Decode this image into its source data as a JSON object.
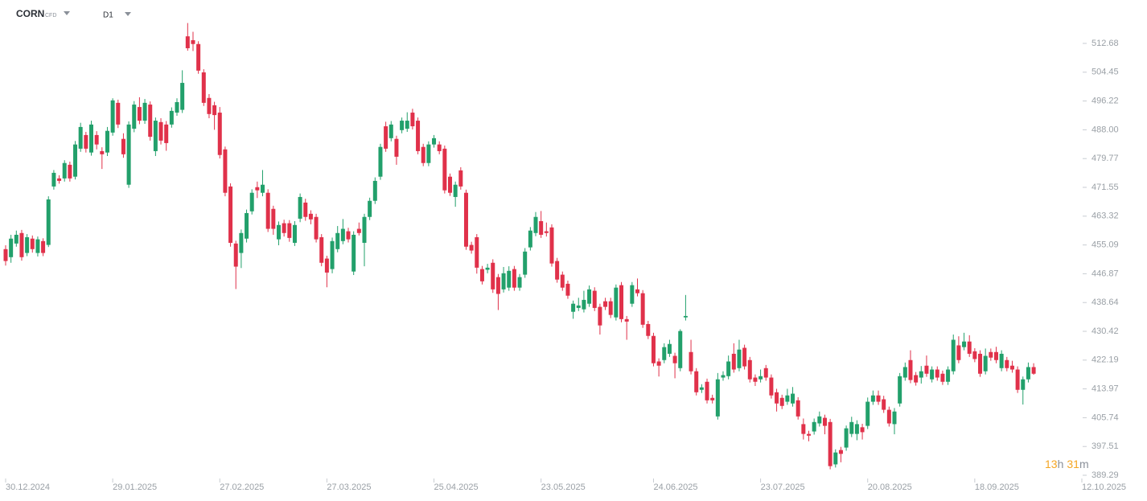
{
  "chart_data": {
    "type": "candlestick",
    "symbol": "CORN",
    "instrument": "CFD",
    "timeframe": "D1",
    "countdown": {
      "hours": 13,
      "hours_unit": "h",
      "minutes": 31,
      "minutes_unit": "m"
    },
    "up_color": "#22a06b",
    "down_color": "#e0314a",
    "xlim": [
      -1.05,
      201
    ],
    "xticks": [
      {
        "value": 0,
        "label": "30.12.2024"
      },
      {
        "value": 20,
        "label": "29.01.2025"
      },
      {
        "value": 40,
        "label": "27.02.2025"
      },
      {
        "value": 60,
        "label": "27.03.2025"
      },
      {
        "value": 80,
        "label": "25.04.2025"
      },
      {
        "value": 100,
        "label": "23.05.2025"
      },
      {
        "value": 121,
        "label": "24.06.2025"
      },
      {
        "value": 141,
        "label": "23.07.2025"
      },
      {
        "value": 161,
        "label": "20.08.2025"
      },
      {
        "value": 181,
        "label": "18.09.2025"
      },
      {
        "value": 201,
        "label": "12.10.2025"
      }
    ],
    "ylim": [
      388.37,
      525.08
    ],
    "yticks": [
      512.68,
      504.45,
      496.22,
      {
        "value": 488,
        "label": "488.00"
      },
      479.77,
      471.55,
      463.32,
      455.09,
      446.87,
      438.64,
      430.42,
      422.19,
      413.97,
      405.74,
      397.51,
      389.29
    ],
    "ohlc": [
      [
        453.9,
        455.0,
        449.2,
        450.5
      ],
      [
        451.6,
        458.0,
        450.0,
        456.9
      ],
      [
        455.5,
        459.2,
        454.6,
        458.0
      ],
      [
        458.5,
        459.4,
        450.6,
        451.6
      ],
      [
        452.8,
        458.2,
        451.9,
        457.3
      ],
      [
        456.9,
        457.8,
        452.9,
        453.9
      ],
      [
        452.8,
        457.5,
        451.8,
        456.7
      ],
      [
        456.2,
        457.0,
        451.9,
        452.8
      ],
      [
        455.1,
        469.0,
        454.5,
        468.1
      ],
      [
        471.8,
        476.5,
        470.9,
        475.7
      ],
      [
        474.1,
        475.0,
        472.6,
        473.4
      ],
      [
        474.1,
        479.3,
        473.2,
        478.5
      ],
      [
        478.0,
        478.9,
        473.2,
        474.1
      ],
      [
        474.6,
        484.8,
        473.8,
        483.8
      ],
      [
        482.6,
        490.0,
        481.7,
        488.8
      ],
      [
        486.5,
        487.4,
        481.5,
        482.6
      ],
      [
        481.5,
        490.6,
        480.6,
        489.5
      ],
      [
        486.5,
        487.6,
        482.4,
        483.8
      ],
      [
        481.9,
        483.0,
        476.8,
        481.0
      ],
      [
        481.5,
        488.8,
        480.5,
        487.7
      ],
      [
        487.2,
        497.0,
        486.3,
        496.4
      ],
      [
        495.7,
        496.6,
        488.5,
        489.5
      ],
      [
        485.4,
        487.0,
        480.0,
        481.0
      ],
      [
        472.3,
        490.4,
        471.4,
        489.5
      ],
      [
        488.3,
        496.2,
        487.3,
        495.2
      ],
      [
        494.5,
        497.3,
        489.6,
        490.6
      ],
      [
        490.6,
        496.8,
        489.7,
        495.7
      ],
      [
        495.2,
        496.1,
        484.9,
        486.0
      ],
      [
        481.9,
        491.5,
        480.5,
        490.6
      ],
      [
        490.2,
        491.3,
        483.8,
        484.9
      ],
      [
        489.5,
        490.5,
        482.0,
        484.2
      ],
      [
        489.5,
        494.4,
        488.6,
        493.4
      ],
      [
        492.9,
        497.0,
        492.0,
        495.9
      ],
      [
        493.7,
        505.0,
        492.8,
        501.4
      ],
      [
        514.7,
        518.5,
        510.6,
        511.3
      ],
      [
        513.6,
        516.0,
        510.5,
        512.5
      ],
      [
        512.5,
        513.3,
        504.0,
        504.9
      ],
      [
        504.4,
        505.3,
        494.8,
        495.7
      ],
      [
        497.1,
        498.2,
        491.3,
        492.5
      ],
      [
        495.0,
        496.0,
        488.0,
        492.2
      ],
      [
        492.9,
        494.5,
        479.8,
        480.8
      ],
      [
        482.4,
        483.2,
        469.0,
        470.0
      ],
      [
        471.8,
        472.7,
        454.6,
        455.7
      ],
      [
        455.5,
        456.3,
        442.5,
        448.9
      ],
      [
        452.8,
        459.5,
        448.5,
        458.5
      ],
      [
        456.9,
        465.2,
        455.8,
        464.2
      ],
      [
        464.7,
        471.0,
        463.8,
        470.0
      ],
      [
        471.6,
        473.2,
        468.5,
        470.7
      ],
      [
        470.0,
        476.5,
        469.0,
        472.3
      ],
      [
        470.0,
        471.0,
        458.8,
        459.7
      ],
      [
        465.4,
        466.3,
        458.0,
        459.7
      ],
      [
        456.7,
        461.8,
        455.0,
        460.8
      ],
      [
        461.3,
        462.3,
        457.5,
        458.5
      ],
      [
        461.3,
        462.2,
        456.0,
        457.1
      ],
      [
        455.7,
        461.9,
        454.8,
        460.8
      ],
      [
        462.6,
        469.8,
        461.6,
        468.8
      ],
      [
        467.2,
        468.3,
        462.0,
        463.1
      ],
      [
        464.0,
        465.0,
        461.0,
        462.4
      ],
      [
        463.1,
        464.0,
        455.8,
        456.7
      ],
      [
        457.3,
        458.2,
        449.0,
        450.0
      ],
      [
        451.2,
        452.0,
        443.0,
        447.2
      ],
      [
        448.2,
        457.2,
        447.0,
        456.2
      ],
      [
        453.9,
        460.5,
        453.0,
        458.5
      ],
      [
        456.2,
        462.5,
        455.3,
        459.7
      ],
      [
        459.0,
        460.0,
        455.8,
        456.7
      ],
      [
        447.5,
        459.0,
        446.5,
        458.0
      ],
      [
        459.7,
        461.5,
        457.8,
        458.5
      ],
      [
        455.7,
        464.0,
        449.0,
        463.1
      ],
      [
        463.1,
        468.6,
        462.2,
        467.7
      ],
      [
        467.7,
        474.4,
        466.8,
        473.4
      ],
      [
        474.6,
        484.0,
        473.7,
        483.1
      ],
      [
        489.0,
        490.3,
        481.7,
        482.6
      ],
      [
        485.6,
        490.5,
        484.7,
        489.5
      ],
      [
        485.4,
        486.3,
        478.0,
        480.3
      ],
      [
        487.9,
        491.5,
        487.0,
        490.6
      ],
      [
        488.3,
        493.0,
        487.4,
        490.6
      ],
      [
        492.9,
        494.0,
        488.1,
        489.0
      ],
      [
        490.6,
        491.5,
        481.0,
        481.9
      ],
      [
        483.1,
        484.0,
        477.6,
        478.5
      ],
      [
        478.5,
        484.7,
        477.6,
        483.8
      ],
      [
        483.8,
        486.5,
        482.9,
        485.6
      ],
      [
        483.8,
        484.7,
        481.0,
        481.9
      ],
      [
        482.6,
        483.5,
        469.8,
        470.7
      ],
      [
        474.6,
        475.5,
        469.1,
        470.0
      ],
      [
        468.8,
        473.2,
        466.0,
        472.3
      ],
      [
        476.4,
        477.3,
        470.9,
        471.8
      ],
      [
        470.0,
        470.9,
        453.7,
        454.6
      ],
      [
        455.1,
        456.0,
        452.6,
        453.5
      ],
      [
        457.3,
        458.2,
        446.9,
        448.6
      ],
      [
        448.2,
        449.1,
        443.8,
        444.7
      ],
      [
        448.0,
        449.7,
        447.0,
        448.6
      ],
      [
        450.0,
        451.0,
        441.4,
        442.4
      ],
      [
        445.9,
        446.8,
        436.5,
        441.1
      ],
      [
        442.4,
        448.8,
        441.5,
        447.0
      ],
      [
        442.9,
        449.0,
        442.0,
        447.7
      ],
      [
        448.2,
        449.1,
        442.0,
        442.9
      ],
      [
        442.9,
        446.8,
        442.0,
        445.9
      ],
      [
        446.6,
        454.2,
        445.7,
        453.2
      ],
      [
        454.4,
        460.2,
        453.5,
        459.2
      ],
      [
        458.5,
        464.5,
        457.6,
        463.1
      ],
      [
        461.9,
        464.8,
        457.1,
        458.0
      ],
      [
        459.0,
        461.5,
        457.5,
        458.5
      ],
      [
        460.1,
        461.0,
        448.9,
        449.8
      ],
      [
        450.5,
        451.4,
        444.3,
        445.2
      ],
      [
        446.6,
        447.5,
        442.0,
        442.9
      ],
      [
        444.0,
        444.9,
        439.7,
        440.6
      ],
      [
        436.0,
        439.2,
        434.0,
        438.3
      ],
      [
        437.1,
        440.0,
        436.2,
        437.8
      ],
      [
        436.7,
        442.0,
        435.8,
        439.4
      ],
      [
        438.3,
        443.5,
        437.4,
        442.4
      ],
      [
        442.0,
        443.0,
        436.2,
        437.1
      ],
      [
        437.4,
        438.3,
        429.5,
        432.1
      ],
      [
        439.0,
        440.0,
        436.5,
        437.4
      ],
      [
        439.0,
        440.0,
        434.2,
        435.1
      ],
      [
        434.4,
        443.8,
        433.5,
        442.9
      ],
      [
        443.6,
        444.5,
        433.0,
        433.9
      ],
      [
        433.9,
        434.8,
        428.0,
        433.2
      ],
      [
        438.3,
        444.5,
        437.4,
        443.6
      ],
      [
        442.4,
        445.5,
        440.4,
        441.3
      ],
      [
        441.3,
        442.2,
        431.4,
        432.3
      ],
      [
        432.5,
        433.4,
        428.2,
        429.1
      ],
      [
        429.1,
        430.0,
        420.4,
        421.3
      ],
      [
        421.8,
        422.7,
        417.5,
        420.6
      ],
      [
        422.2,
        427.0,
        421.3,
        425.9
      ],
      [
        424.0,
        428.0,
        423.1,
        426.8
      ],
      [
        423.4,
        424.3,
        417.0,
        421.3
      ],
      [
        419.9,
        431.0,
        419.0,
        430.5
      ],
      [
        434.4,
        440.8,
        433.5,
        434.8
      ],
      [
        424.5,
        428.0,
        418.1,
        419.0
      ],
      [
        419.0,
        419.9,
        412.1,
        413.0
      ],
      [
        413.7,
        415.3,
        412.8,
        414.4
      ],
      [
        416.0,
        416.9,
        409.8,
        410.7
      ],
      [
        411.4,
        412.3,
        409.8,
        410.7
      ],
      [
        406.1,
        418.5,
        405.2,
        416.7
      ],
      [
        417.2,
        419.0,
        416.3,
        417.9
      ],
      [
        417.6,
        423.5,
        416.7,
        421.8
      ],
      [
        424.0,
        427.0,
        418.6,
        419.5
      ],
      [
        419.9,
        428.0,
        419.0,
        425.2
      ],
      [
        425.7,
        426.6,
        419.5,
        420.4
      ],
      [
        422.2,
        423.1,
        415.8,
        416.7
      ],
      [
        417.2,
        418.1,
        414.8,
        416.0
      ],
      [
        416.7,
        419.5,
        415.8,
        417.6
      ],
      [
        419.9,
        420.8,
        416.3,
        417.2
      ],
      [
        417.2,
        418.1,
        411.2,
        412.1
      ],
      [
        413.0,
        414.0,
        407.5,
        409.8
      ],
      [
        411.4,
        412.3,
        408.2,
        409.1
      ],
      [
        410.3,
        414.0,
        409.4,
        412.1
      ],
      [
        409.8,
        414.5,
        408.9,
        412.6
      ],
      [
        410.7,
        411.6,
        405.2,
        406.1
      ],
      [
        403.9,
        405.5,
        399.5,
        401.1
      ],
      [
        401.1,
        402.0,
        399.0,
        400.6
      ],
      [
        401.8,
        405.5,
        400.9,
        404.5
      ],
      [
        404.1,
        407.5,
        403.2,
        406.1
      ],
      [
        405.7,
        406.6,
        401.0,
        403.4
      ],
      [
        404.5,
        405.4,
        391.0,
        391.9
      ],
      [
        392.4,
        396.7,
        391.5,
        395.8
      ],
      [
        396.5,
        397.4,
        393.0,
        395.4
      ],
      [
        397.2,
        403.5,
        396.3,
        402.7
      ],
      [
        401.1,
        406.0,
        400.2,
        404.5
      ],
      [
        401.1,
        405.0,
        399.3,
        403.9
      ],
      [
        403.0,
        404.0,
        399.5,
        401.6
      ],
      [
        403.4,
        411.5,
        402.5,
        410.3
      ],
      [
        410.3,
        413.5,
        409.4,
        412.1
      ],
      [
        412.1,
        413.5,
        409.4,
        410.3
      ],
      [
        411.0,
        412.0,
        407.1,
        408.0
      ],
      [
        408.0,
        408.9,
        403.2,
        404.1
      ],
      [
        403.9,
        408.5,
        401.0,
        407.5
      ],
      [
        409.8,
        418.5,
        408.9,
        417.6
      ],
      [
        417.2,
        421.5,
        416.3,
        420.2
      ],
      [
        422.2,
        425.0,
        415.6,
        416.5
      ],
      [
        417.9,
        418.8,
        414.9,
        415.8
      ],
      [
        417.2,
        420.5,
        415.5,
        419.0
      ],
      [
        420.6,
        423.5,
        417.4,
        418.3
      ],
      [
        416.7,
        420.4,
        415.8,
        419.5
      ],
      [
        419.5,
        420.4,
        416.3,
        417.2
      ],
      [
        418.3,
        419.2,
        415.1,
        416.0
      ],
      [
        416.0,
        420.4,
        415.1,
        419.5
      ],
      [
        419.0,
        429.5,
        418.1,
        428.0
      ],
      [
        426.4,
        429.0,
        421.3,
        422.2
      ],
      [
        425.9,
        430.0,
        425.0,
        427.5
      ],
      [
        427.5,
        429.3,
        423.1,
        424.0
      ],
      [
        424.7,
        425.6,
        421.6,
        422.5
      ],
      [
        424.0,
        425.0,
        417.4,
        418.3
      ],
      [
        419.0,
        425.5,
        418.1,
        423.4
      ],
      [
        424.5,
        425.5,
        422.0,
        422.9
      ],
      [
        424.5,
        426.0,
        421.3,
        422.2
      ],
      [
        419.9,
        425.0,
        419.0,
        424.0
      ],
      [
        422.2,
        423.1,
        419.0,
        419.9
      ],
      [
        420.6,
        422.0,
        418.6,
        419.5
      ],
      [
        419.5,
        420.4,
        412.8,
        413.7
      ],
      [
        413.7,
        417.5,
        409.5,
        416.7
      ],
      [
        416.7,
        421.5,
        415.8,
        420.2
      ],
      [
        420.2,
        421.3,
        418.0,
        418.3
      ]
    ]
  }
}
